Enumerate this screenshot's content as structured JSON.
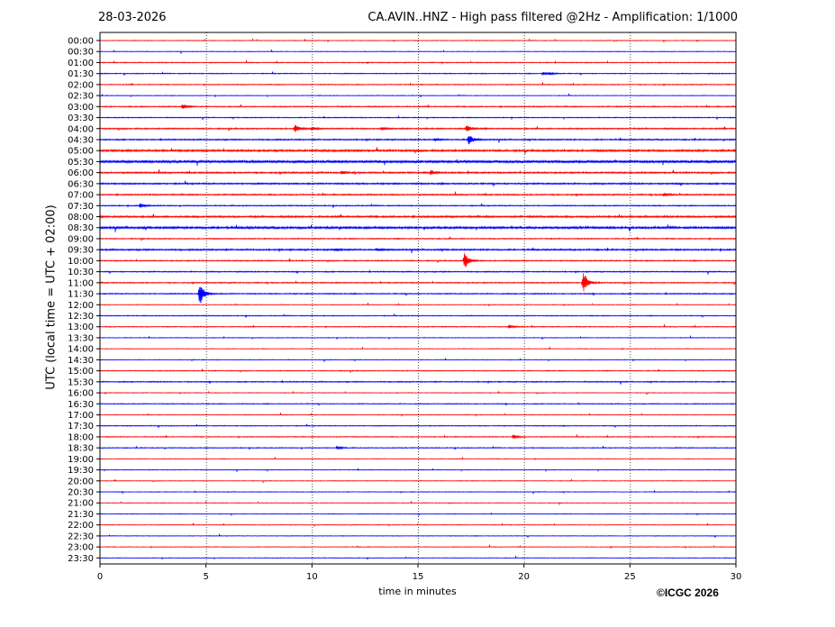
{
  "header": {
    "date": "28-03-2026",
    "title": "CA.AVIN..HNZ - High pass filtered @2Hz - Amplification: 1/1000"
  },
  "copyright": "©ICGC 2026",
  "chart_data": {
    "type": "line",
    "title": "CA.AVIN..HNZ - High pass filtered @2Hz - Amplification: 1/1000",
    "xlabel": "time in minutes",
    "ylabel": "UTC (local time = UTC + 02:00)",
    "xlim": [
      0,
      30
    ],
    "x_ticks": [
      0,
      5,
      10,
      15,
      20,
      25,
      30
    ],
    "grid": "vertical dotted at 5-minute ticks",
    "rows": [
      "00:00",
      "00:30",
      "01:00",
      "01:30",
      "02:00",
      "02:30",
      "03:00",
      "03:30",
      "04:00",
      "04:30",
      "05:00",
      "05:30",
      "06:00",
      "06:30",
      "07:00",
      "07:30",
      "08:00",
      "08:30",
      "09:00",
      "09:30",
      "10:00",
      "10:30",
      "11:00",
      "11:30",
      "12:00",
      "12:30",
      "13:00",
      "13:30",
      "14:00",
      "14:30",
      "15:00",
      "15:30",
      "16:00",
      "16:30",
      "17:00",
      "17:30",
      "18:00",
      "18:30",
      "19:00",
      "19:30",
      "20:00",
      "20:30",
      "21:00",
      "21:30",
      "22:00",
      "22:30",
      "23:00",
      "23:30"
    ],
    "row_colors": [
      "#ff0000",
      "#0000ff"
    ],
    "row_noise": [
      0.3,
      0.3,
      0.4,
      0.4,
      0.4,
      0.3,
      0.5,
      0.4,
      0.6,
      0.6,
      0.9,
      1.2,
      0.7,
      0.7,
      0.6,
      0.5,
      0.8,
      1.0,
      0.5,
      0.7,
      0.5,
      0.5,
      0.5,
      0.5,
      0.3,
      0.4,
      0.4,
      0.3,
      0.3,
      0.3,
      0.4,
      0.5,
      0.3,
      0.4,
      0.3,
      0.4,
      0.4,
      0.4,
      0.3,
      0.3,
      0.3,
      0.3,
      0.3,
      0.3,
      0.3,
      0.3,
      0.3,
      0.3
    ],
    "events": [
      {
        "row": "01:30",
        "minute": 20.9,
        "amplitude": 1.6
      },
      {
        "row": "01:30",
        "minute": 21.2,
        "amplitude": 1.4
      },
      {
        "row": "03:00",
        "minute": 3.9,
        "amplitude": 3.2
      },
      {
        "row": "04:00",
        "minute": 9.2,
        "amplitude": 4.2
      },
      {
        "row": "04:00",
        "minute": 10.0,
        "amplitude": 1.8
      },
      {
        "row": "04:00",
        "minute": 13.3,
        "amplitude": 1.6
      },
      {
        "row": "04:00",
        "minute": 17.3,
        "amplitude": 4.0
      },
      {
        "row": "04:30",
        "minute": 17.4,
        "amplitude": 6.0
      },
      {
        "row": "04:30",
        "minute": 15.8,
        "amplitude": 1.4
      },
      {
        "row": "06:00",
        "minute": 11.4,
        "amplitude": 1.6
      },
      {
        "row": "06:00",
        "minute": 15.6,
        "amplitude": 2.6
      },
      {
        "row": "07:00",
        "minute": 26.6,
        "amplitude": 2.0
      },
      {
        "row": "07:30",
        "minute": 1.9,
        "amplitude": 2.6
      },
      {
        "row": "09:30",
        "minute": 11.1,
        "amplitude": 1.4
      },
      {
        "row": "09:30",
        "minute": 13.1,
        "amplitude": 1.4
      },
      {
        "row": "10:00",
        "minute": 17.2,
        "amplitude": 10.0
      },
      {
        "row": "11:00",
        "minute": 22.8,
        "amplitude": 12.0
      },
      {
        "row": "11:30",
        "minute": 4.7,
        "amplitude": 14.0
      },
      {
        "row": "13:00",
        "minute": 19.3,
        "amplitude": 2.4
      },
      {
        "row": "18:00",
        "minute": 19.5,
        "amplitude": 2.4
      },
      {
        "row": "18:30",
        "minute": 11.2,
        "amplitude": 1.8
      }
    ]
  }
}
